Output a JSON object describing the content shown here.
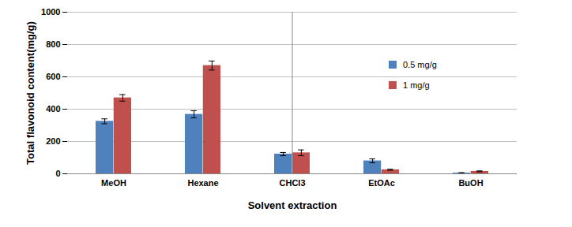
{
  "chart_data": {
    "type": "bar",
    "x_label": "Solvent extraction",
    "y_label": "Total flavonoid content(mg/g)",
    "categories": [
      "MeOH",
      "Hexane",
      "CHCl3",
      "EtOAc",
      "BuOH"
    ],
    "series": [
      {
        "name": "0.5 mg/g",
        "color": "#4f81bd",
        "values": [
          325,
          368,
          122,
          80,
          5
        ],
        "errors": [
          15,
          22,
          10,
          12,
          2
        ]
      },
      {
        "name": "1 mg/g",
        "color": "#c0504d",
        "values": [
          470,
          670,
          130,
          25,
          15
        ],
        "errors": [
          20,
          28,
          18,
          3,
          3
        ]
      }
    ],
    "ylim": [
      0,
      1000
    ],
    "yticks": [
      0,
      200,
      400,
      600,
      800,
      1000
    ],
    "grid": true,
    "legend": "upper right"
  }
}
